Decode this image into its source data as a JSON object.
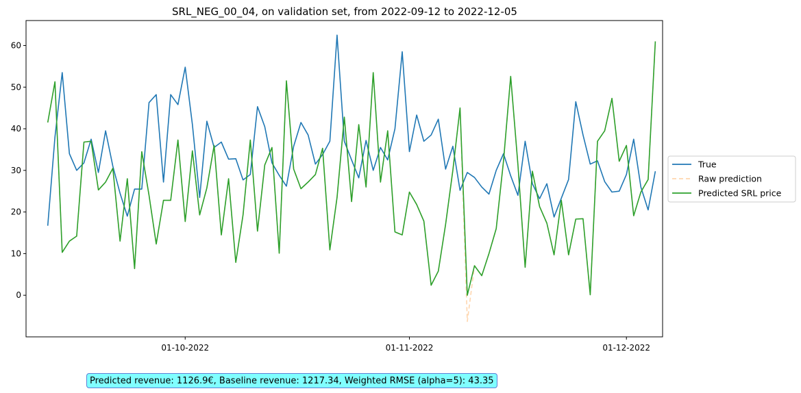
{
  "chart_data": {
    "type": "line",
    "title": "SRL_NEG_00_04, on validation set, from 2022-09-12 to 2022-12-05",
    "xlabel": "",
    "ylabel": "",
    "ylim": [
      -10,
      66
    ],
    "yticks": [
      0,
      10,
      20,
      30,
      40,
      50,
      60
    ],
    "xrange": [
      -3,
      85
    ],
    "xticks": [
      {
        "label": "01-10-2022",
        "x": 19
      },
      {
        "label": "01-11-2022",
        "x": 50
      },
      {
        "label": "01-12-2022",
        "x": 80
      }
    ],
    "legend_position": "right",
    "series": [
      {
        "name": "True",
        "color": "#1f77b4",
        "dash": "",
        "x": [
          0,
          1,
          2,
          3,
          4,
          5,
          6,
          7,
          8,
          9,
          10,
          11,
          12,
          13,
          14,
          15,
          16,
          17,
          18,
          19,
          20,
          21,
          22,
          23,
          24,
          25,
          26,
          27,
          28,
          29,
          30,
          31,
          32,
          33,
          34,
          35,
          36,
          37,
          38,
          39,
          40,
          41,
          42,
          43,
          44,
          45,
          46,
          47,
          48,
          49,
          50,
          51,
          52,
          53,
          54,
          55,
          56,
          57,
          58,
          59,
          60,
          61,
          62,
          63,
          64,
          65,
          66,
          67,
          68,
          69,
          70,
          71,
          72,
          73,
          74,
          75,
          76,
          77,
          78,
          79,
          80,
          81,
          82,
          83,
          84
        ],
        "values": [
          16.7,
          38.0,
          53.5,
          34.0,
          30.0,
          31.8,
          37.5,
          29.5,
          39.5,
          31.0,
          24.5,
          19.0,
          25.5,
          25.5,
          46.3,
          48.2,
          27.2,
          48.2,
          45.8,
          54.8,
          41.0,
          23.5,
          41.8,
          35.5,
          36.8,
          32.7,
          32.8,
          27.7,
          29.0,
          45.3,
          40.5,
          31.8,
          28.8,
          26.2,
          35.8,
          41.5,
          38.5,
          31.5,
          33.8,
          37.0,
          62.5,
          37.0,
          32.5,
          28.2,
          37.2,
          30.0,
          35.5,
          32.5,
          40.0,
          58.5,
          34.5,
          43.3,
          37.0,
          38.5,
          42.3,
          30.3,
          35.8,
          25.2,
          29.5,
          28.3,
          26.0,
          24.3,
          30.0,
          34.0,
          28.7,
          24.0,
          37.0,
          26.8,
          23.2,
          26.8,
          18.8,
          23.3,
          27.8,
          46.5,
          38.5,
          31.5,
          32.3,
          27.3,
          24.8,
          25.0,
          29.0,
          37.5,
          26.0,
          20.5,
          29.8
        ]
      },
      {
        "name": "Raw prediction",
        "color": "#ffbb78",
        "dash": "6,4",
        "x": [
          0,
          1,
          2,
          3,
          4,
          5,
          6,
          7,
          8,
          9,
          10,
          11,
          12,
          13,
          14,
          15,
          16,
          17,
          18,
          19,
          20,
          21,
          22,
          23,
          24,
          25,
          26,
          27,
          28,
          29,
          30,
          31,
          32,
          33,
          34,
          35,
          36,
          37,
          38,
          39,
          40,
          41,
          42,
          43,
          44,
          45,
          46,
          47,
          48,
          49,
          50,
          51,
          52,
          53,
          54,
          55,
          56,
          57,
          58,
          59,
          60,
          61,
          62,
          63,
          64,
          65,
          66,
          67,
          68,
          69,
          70,
          71,
          72,
          73,
          74,
          75,
          76,
          77,
          78,
          79,
          80,
          81,
          82,
          83,
          84
        ],
        "values": [
          41.5,
          51.3,
          10.3,
          13.0,
          14.2,
          36.8,
          37.0,
          25.3,
          27.2,
          30.5,
          13.0,
          28.0,
          6.4,
          34.5,
          24.0,
          12.3,
          22.8,
          22.8,
          37.3,
          17.7,
          34.7,
          19.3,
          25.8,
          36.0,
          14.5,
          28.0,
          7.9,
          19.3,
          37.3,
          15.4,
          31.3,
          35.5,
          10.1,
          51.5,
          30.3,
          25.6,
          27.2,
          29.0,
          35.3,
          10.9,
          23.5,
          42.8,
          22.5,
          41.0,
          26.0,
          53.5,
          27.2,
          39.5,
          15.2,
          14.5,
          24.8,
          21.8,
          17.8,
          2.4,
          5.8,
          17.0,
          30.0,
          45.0,
          -6.3,
          7.1,
          4.7,
          10.0,
          16.0,
          32.2,
          52.6,
          31.3,
          6.7,
          29.8,
          21.3,
          17.3,
          9.7,
          22.8,
          9.7,
          18.3,
          18.4,
          0.1,
          37.0,
          39.5,
          47.3,
          32.2,
          36.0,
          19.1,
          24.8,
          27.8,
          61.0
        ]
      },
      {
        "name": "Predicted SRL price",
        "color": "#2ca02c",
        "dash": "",
        "x": [
          0,
          1,
          2,
          3,
          4,
          5,
          6,
          7,
          8,
          9,
          10,
          11,
          12,
          13,
          14,
          15,
          16,
          17,
          18,
          19,
          20,
          21,
          22,
          23,
          24,
          25,
          26,
          27,
          28,
          29,
          30,
          31,
          32,
          33,
          34,
          35,
          36,
          37,
          38,
          39,
          40,
          41,
          42,
          43,
          44,
          45,
          46,
          47,
          48,
          49,
          50,
          51,
          52,
          53,
          54,
          55,
          56,
          57,
          58,
          59,
          60,
          61,
          62,
          63,
          64,
          65,
          66,
          67,
          68,
          69,
          70,
          71,
          72,
          73,
          74,
          75,
          76,
          77,
          78,
          79,
          80,
          81,
          82,
          83,
          84
        ],
        "values": [
          41.5,
          51.3,
          10.3,
          13.0,
          14.2,
          36.8,
          37.0,
          25.3,
          27.2,
          30.5,
          13.0,
          28.0,
          6.4,
          34.5,
          24.0,
          12.3,
          22.8,
          22.8,
          37.3,
          17.7,
          34.7,
          19.3,
          25.8,
          36.0,
          14.5,
          28.0,
          7.9,
          19.3,
          37.3,
          15.4,
          31.3,
          35.5,
          10.1,
          51.5,
          30.3,
          25.6,
          27.2,
          29.0,
          35.3,
          10.9,
          23.5,
          42.8,
          22.5,
          41.0,
          26.0,
          53.5,
          27.2,
          39.5,
          15.2,
          14.5,
          24.8,
          21.8,
          17.8,
          2.4,
          5.8,
          17.0,
          30.0,
          45.0,
          0.0,
          7.1,
          4.7,
          10.0,
          16.0,
          32.2,
          52.6,
          31.3,
          6.7,
          29.8,
          21.3,
          17.3,
          9.7,
          22.8,
          9.7,
          18.3,
          18.4,
          0.1,
          37.0,
          39.5,
          47.3,
          32.2,
          36.0,
          19.1,
          24.8,
          27.8,
          61.0
        ]
      }
    ]
  },
  "annotation": {
    "text": "Predicted revenue: 1126.9€, Baseline revenue: 1217.34, Weighted RMSE (alpha=5): 43.35"
  }
}
